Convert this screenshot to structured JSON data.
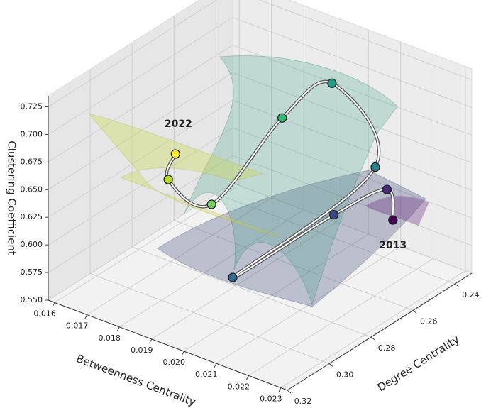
{
  "chart_data": {
    "type": "line3d",
    "xlabel": "Betweenness Centrality",
    "ylabel": "Degree Centrality",
    "zlabel": "Clustering Coefficient",
    "x": [
      0.0219,
      0.022,
      0.0212,
      0.0195,
      0.0219,
      0.0203,
      0.0196,
      0.018,
      0.0164,
      0.0163
    ],
    "y": [
      0.2496,
      0.254,
      0.267,
      0.289,
      0.258,
      0.254,
      0.267,
      0.276,
      0.272,
      0.267
    ],
    "z": [
      0.605,
      0.639,
      0.623,
      0.574,
      0.663,
      0.7165,
      0.693,
      0.608,
      0.608,
      0.624
    ],
    "point_colors": [
      "#440154",
      "#482878",
      "#3e4989",
      "#31688e",
      "#26828e",
      "#1f9e89",
      "#35b779",
      "#6ece58",
      "#b5de2b",
      "#fde725"
    ],
    "xlim": [
      0.0158,
      0.0232
    ],
    "ylim": [
      0.232,
      0.32
    ],
    "zlim": [
      0.55,
      0.735
    ],
    "xticks": [
      0.016,
      0.017,
      0.018,
      0.019,
      {
        "value": 0.02,
        "label": "0.020"
      },
      0.021,
      0.022,
      0.023
    ],
    "yticks": [
      0.24,
      0.26,
      0.28,
      {
        "value": 0.3,
        "label": "0.30"
      },
      0.32
    ],
    "zticks": [
      {
        "value": 0.55,
        "label": "0.550"
      },
      0.575,
      {
        "value": 0.6,
        "label": "0.600"
      },
      0.625,
      {
        "value": 0.65,
        "label": "0.650"
      },
      0.675,
      {
        "value": 0.7,
        "label": "0.700"
      },
      0.725
    ],
    "annotations": [
      {
        "text": "2013",
        "color": "#1a1a8c"
      },
      {
        "text": "2022",
        "color": "#8b0000"
      }
    ],
    "grid": true
  }
}
